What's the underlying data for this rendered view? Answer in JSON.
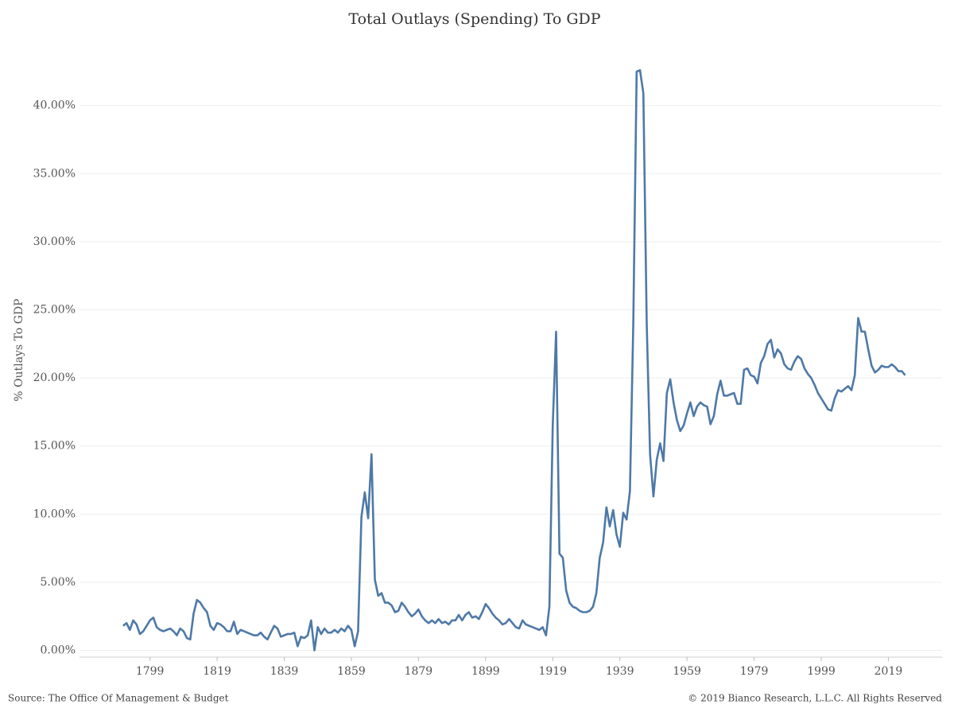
{
  "chart_data": {
    "type": "line",
    "title": "Total Outlays (Spending) To GDP",
    "y_label": "% Outlays To GDP",
    "source": "Source: The Office Of Management & Budget",
    "copyright": "© 2019 Bianco Research, L.L.C. All Rights Reserved",
    "xlim": [
      1778,
      2035
    ],
    "xticks": [
      1799,
      1819,
      1839,
      1859,
      1879,
      1899,
      1919,
      1939,
      1959,
      1979,
      1999,
      2019
    ],
    "ylim": [
      -0.5,
      46
    ],
    "yticks": [
      {
        "value": 0,
        "label": "0.00%"
      },
      {
        "value": 5,
        "label": "5.00%"
      },
      {
        "value": 10,
        "label": "10.00%"
      },
      {
        "value": 15,
        "label": "15.00%"
      },
      {
        "value": 20,
        "label": "20.00%"
      },
      {
        "value": 25,
        "label": "25.00%"
      },
      {
        "value": 30,
        "label": "30.00%"
      },
      {
        "value": 35,
        "label": "35.00%"
      },
      {
        "value": 40,
        "label": "40.00%"
      }
    ],
    "grid": true,
    "x": [
      1791,
      1792,
      1793,
      1794,
      1795,
      1796,
      1797,
      1798,
      1799,
      1800,
      1801,
      1802,
      1803,
      1804,
      1805,
      1806,
      1807,
      1808,
      1809,
      1810,
      1811,
      1812,
      1813,
      1814,
      1815,
      1816,
      1817,
      1818,
      1819,
      1820,
      1821,
      1822,
      1823,
      1824,
      1825,
      1826,
      1827,
      1828,
      1829,
      1830,
      1831,
      1832,
      1833,
      1834,
      1835,
      1836,
      1837,
      1838,
      1839,
      1840,
      1841,
      1842,
      1843,
      1844,
      1845,
      1846,
      1847,
      1848,
      1849,
      1850,
      1851,
      1852,
      1853,
      1854,
      1855,
      1856,
      1857,
      1858,
      1859,
      1860,
      1861,
      1862,
      1863,
      1864,
      1865,
      1866,
      1867,
      1868,
      1869,
      1870,
      1871,
      1872,
      1873,
      1874,
      1875,
      1876,
      1877,
      1878,
      1879,
      1880,
      1881,
      1882,
      1883,
      1884,
      1885,
      1886,
      1887,
      1888,
      1889,
      1890,
      1891,
      1892,
      1893,
      1894,
      1895,
      1896,
      1897,
      1898,
      1899,
      1900,
      1901,
      1902,
      1903,
      1904,
      1905,
      1906,
      1907,
      1908,
      1909,
      1910,
      1911,
      1912,
      1913,
      1914,
      1915,
      1916,
      1917,
      1918,
      1919,
      1920,
      1921,
      1922,
      1923,
      1924,
      1925,
      1926,
      1927,
      1928,
      1929,
      1930,
      1931,
      1932,
      1933,
      1934,
      1935,
      1936,
      1937,
      1938,
      1939,
      1940,
      1941,
      1942,
      1943,
      1944,
      1945,
      1946,
      1947,
      1948,
      1949,
      1950,
      1951,
      1952,
      1953,
      1954,
      1955,
      1956,
      1957,
      1958,
      1959,
      1960,
      1961,
      1962,
      1963,
      1964,
      1965,
      1966,
      1967,
      1968,
      1969,
      1970,
      1971,
      1972,
      1973,
      1974,
      1975,
      1976,
      1977,
      1978,
      1979,
      1980,
      1981,
      1982,
      1983,
      1984,
      1985,
      1986,
      1987,
      1988,
      1989,
      1990,
      1991,
      1992,
      1993,
      1994,
      1995,
      1996,
      1997,
      1998,
      1999,
      2000,
      2001,
      2002,
      2003,
      2004,
      2005,
      2006,
      2007,
      2008,
      2009,
      2010,
      2011,
      2012,
      2013,
      2014,
      2015,
      2016,
      2017,
      2018,
      2019,
      2020,
      2021,
      2022,
      2023,
      2024
    ],
    "series": [
      {
        "name": "% Outlays To GDP",
        "color": "#4e79a7",
        "values": [
          1.8,
          2.0,
          1.5,
          2.2,
          1.9,
          1.2,
          1.4,
          1.8,
          2.2,
          2.4,
          1.7,
          1.5,
          1.4,
          1.5,
          1.6,
          1.4,
          1.1,
          1.6,
          1.4,
          0.9,
          0.8,
          2.7,
          3.7,
          3.5,
          3.1,
          2.8,
          1.8,
          1.5,
          2.0,
          1.9,
          1.7,
          1.4,
          1.4,
          2.1,
          1.2,
          1.5,
          1.4,
          1.3,
          1.2,
          1.1,
          1.1,
          1.3,
          1.0,
          0.8,
          1.3,
          1.8,
          1.6,
          1.0,
          1.1,
          1.2,
          1.2,
          1.3,
          0.3,
          1.0,
          0.9,
          1.1,
          2.2,
          0.0,
          1.7,
          1.2,
          1.6,
          1.3,
          1.3,
          1.5,
          1.3,
          1.6,
          1.4,
          1.8,
          1.5,
          0.3,
          1.4,
          9.8,
          11.6,
          9.7,
          14.4,
          5.2,
          4.0,
          4.2,
          3.5,
          3.5,
          3.3,
          2.8,
          2.9,
          3.5,
          3.2,
          2.8,
          2.5,
          2.7,
          3.0,
          2.5,
          2.2,
          2.0,
          2.2,
          2.0,
          2.3,
          2.0,
          2.1,
          1.9,
          2.2,
          2.2,
          2.6,
          2.2,
          2.6,
          2.8,
          2.4,
          2.5,
          2.3,
          2.8,
          3.4,
          3.1,
          2.7,
          2.4,
          2.2,
          1.9,
          2.0,
          2.3,
          2.0,
          1.7,
          1.6,
          2.2,
          1.9,
          1.8,
          1.7,
          1.6,
          1.5,
          1.7,
          1.1,
          3.2,
          16.5,
          23.4,
          7.1,
          6.8,
          4.4,
          3.5,
          3.2,
          3.1,
          2.9,
          2.8,
          2.8,
          2.9,
          3.2,
          4.2,
          6.8,
          7.9,
          10.5,
          9.1,
          10.3,
          8.5,
          7.6,
          10.1,
          9.6,
          11.7,
          24.0,
          42.5,
          42.6,
          40.9,
          24.0,
          14.4,
          11.3,
          14.0,
          15.2,
          13.9,
          18.9,
          19.9,
          18.2,
          16.9,
          16.1,
          16.5,
          17.4,
          18.2,
          17.2,
          17.9,
          18.2,
          18.0,
          17.9,
          16.6,
          17.2,
          18.8,
          19.8,
          18.7,
          18.7,
          18.8,
          18.9,
          18.1,
          18.1,
          20.6,
          20.7,
          20.2,
          20.1,
          19.6,
          21.1,
          21.6,
          22.5,
          22.8,
          21.5,
          22.1,
          21.8,
          21.0,
          20.7,
          20.6,
          21.2,
          21.6,
          21.4,
          20.7,
          20.3,
          20.0,
          19.5,
          18.9,
          18.5,
          18.1,
          17.7,
          17.6,
          18.5,
          19.1,
          19.0,
          19.2,
          19.4,
          19.1,
          20.2,
          24.4,
          23.4,
          23.4,
          22.1,
          20.9,
          20.4,
          20.6,
          20.9,
          20.8,
          20.8,
          21.0,
          20.8,
          20.5,
          20.5,
          20.2
        ]
      }
    ]
  }
}
